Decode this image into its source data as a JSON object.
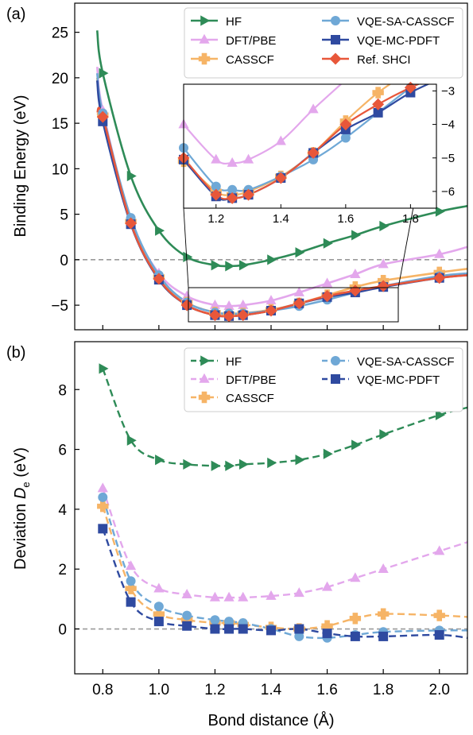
{
  "colors": {
    "HF": "#2e8b57",
    "DFT/PBE": "#e3a7ec",
    "CASSCF": "#f6b466",
    "VQE-SA-CASSCF": "#6fa8d6",
    "VQE-MC-PDFT": "#2f4aa0",
    "Ref. SHCI": "#e8573a",
    "zero_line": "#9a9a9a"
  },
  "x_axis": {
    "label": "Bond distance (Å)",
    "ticks": [
      "0.8",
      "1.0",
      "1.2",
      "1.4",
      "1.6",
      "1.8",
      "2.0"
    ],
    "range": [
      0.7,
      2.1
    ]
  },
  "chart_data": [
    {
      "panel_label": "(a)",
      "type": "line",
      "ylabel": "Binding Energy (eV)",
      "xlim": [
        0.7,
        2.1
      ],
      "ylim": [
        -7.7,
        28.2
      ],
      "yticks": [
        "−5",
        "0",
        "5",
        "10",
        "15",
        "20",
        "25"
      ],
      "yticks_values": [
        -5,
        0,
        5,
        10,
        15,
        20,
        25
      ],
      "legend_position": "top-right",
      "series": [
        {
          "name": "HF",
          "marker": "triangle-right",
          "x": [
            0.8,
            0.9,
            1.0,
            1.1,
            1.2,
            1.25,
            1.3,
            1.4,
            1.5,
            1.6,
            1.7,
            1.8,
            2.0
          ],
          "y": [
            20.5,
            9.2,
            3.2,
            0.3,
            -0.6,
            -0.7,
            -0.6,
            0.0,
            0.8,
            1.8,
            2.7,
            3.7,
            5.3
          ]
        },
        {
          "name": "DFT/PBE",
          "marker": "triangle-up",
          "x": [
            0.8,
            0.9,
            1.0,
            1.1,
            1.2,
            1.25,
            1.3,
            1.4,
            1.5,
            1.6,
            1.7,
            1.8,
            2.0
          ],
          "y": [
            16.4,
            4.4,
            -1.5,
            -4.0,
            -5.0,
            -5.1,
            -5.0,
            -4.5,
            -3.6,
            -2.6,
            -1.6,
            -0.5,
            0.6
          ]
        },
        {
          "name": "CASSCF",
          "marker": "plus",
          "x": [
            0.8,
            0.9,
            1.0,
            1.1,
            1.2,
            1.25,
            1.3,
            1.4,
            1.5,
            1.6,
            1.7,
            1.8,
            2.0
          ],
          "y": [
            15.9,
            4.2,
            -1.9,
            -4.7,
            -5.8,
            -6.0,
            -5.9,
            -5.5,
            -4.8,
            -3.9,
            -3.0,
            -2.3,
            -1.4
          ]
        },
        {
          "name": "VQE-SA-CASSCF",
          "marker": "circle",
          "x": [
            0.8,
            0.9,
            1.0,
            1.1,
            1.2,
            1.25,
            1.3,
            1.4,
            1.5,
            1.6,
            1.7,
            1.8,
            2.0
          ],
          "y": [
            16.1,
            4.6,
            -1.7,
            -4.7,
            -5.8,
            -5.9,
            -5.9,
            -5.6,
            -5.1,
            -4.4,
            -3.6,
            -2.9,
            -1.8
          ]
        },
        {
          "name": "VQE-MC-PDFT",
          "marker": "square",
          "x": [
            0.8,
            0.9,
            1.0,
            1.1,
            1.2,
            1.25,
            1.3,
            1.4,
            1.5,
            1.6,
            1.7,
            1.8,
            2.0
          ],
          "y": [
            15.2,
            3.9,
            -2.2,
            -5.0,
            -6.1,
            -6.2,
            -6.1,
            -5.6,
            -4.8,
            -4.1,
            -3.6,
            -3.0,
            -2.0
          ]
        },
        {
          "name": "Ref. SHCI",
          "marker": "diamond",
          "x": [
            0.8,
            0.9,
            1.0,
            1.1,
            1.2,
            1.25,
            1.3,
            1.4,
            1.5,
            1.6,
            1.7,
            1.8,
            2.0
          ],
          "y": [
            15.7,
            4.0,
            -2.1,
            -5.0,
            -6.1,
            -6.2,
            -6.1,
            -5.6,
            -4.8,
            -4.0,
            -3.4,
            -2.9,
            -2.0
          ]
        }
      ],
      "inset": {
        "xlim": [
          1.1,
          1.88
        ],
        "ylim": [
          -6.5,
          -2.8
        ],
        "xticks": [
          "1.2",
          "1.4",
          "1.6",
          "1.8"
        ],
        "xticks_values": [
          1.2,
          1.4,
          1.6,
          1.8
        ],
        "yticks": [
          "−6",
          "−5",
          "−4",
          "−3"
        ],
        "yticks_values": [
          -6,
          -5,
          -4,
          -3
        ],
        "series": [
          {
            "name": "DFT/PBE",
            "x": [
              1.1,
              1.2,
              1.25,
              1.3,
              1.4,
              1.5
            ],
            "y": [
              -4.0,
              -5.05,
              -5.15,
              -5.05,
              -4.5,
              -3.55
            ]
          },
          {
            "name": "CASSCF",
            "x": [
              1.1,
              1.2,
              1.25,
              1.3,
              1.4,
              1.5,
              1.6,
              1.7
            ],
            "y": [
              -5.1,
              -6.0,
              -6.1,
              -6.0,
              -5.55,
              -4.85,
              -3.9,
              -3.05
            ]
          },
          {
            "name": "VQE-SA-CASSCF",
            "x": [
              1.1,
              1.2,
              1.25,
              1.3,
              1.4,
              1.5,
              1.6,
              1.8
            ],
            "y": [
              -4.7,
              -5.85,
              -5.95,
              -5.95,
              -5.55,
              -5.05,
              -4.4,
              -2.9
            ]
          },
          {
            "name": "VQE-MC-PDFT",
            "x": [
              1.1,
              1.2,
              1.25,
              1.3,
              1.4,
              1.5,
              1.6,
              1.7,
              1.8
            ],
            "y": [
              -5.05,
              -6.15,
              -6.2,
              -6.1,
              -5.6,
              -4.85,
              -4.15,
              -3.65,
              -3.05
            ]
          },
          {
            "name": "Ref. SHCI",
            "x": [
              1.1,
              1.2,
              1.25,
              1.3,
              1.4,
              1.5,
              1.6,
              1.7,
              1.8
            ],
            "y": [
              -5.0,
              -6.1,
              -6.2,
              -6.1,
              -5.6,
              -4.85,
              -4.0,
              -3.4,
              -2.9
            ]
          }
        ]
      }
    },
    {
      "panel_label": "(b)",
      "type": "line",
      "ylabel": "Deviation D_e (eV)",
      "ylabel_main": "Deviation ",
      "ylabel_italic": "D",
      "ylabel_sub": "e",
      "ylabel_unit": " (eV)",
      "xlim": [
        0.7,
        2.1
      ],
      "ylim": [
        -1.5,
        9.6
      ],
      "yticks": [
        "0",
        "2",
        "4",
        "6",
        "8"
      ],
      "yticks_values": [
        0,
        2,
        4,
        6,
        8
      ],
      "legend_position": "top-right",
      "series": [
        {
          "name": "HF",
          "marker": "triangle-right",
          "x": [
            0.8,
            0.9,
            1.0,
            1.1,
            1.2,
            1.25,
            1.3,
            1.4,
            1.5,
            1.6,
            1.7,
            1.8,
            2.0,
            2.1
          ],
          "y": [
            8.7,
            6.3,
            5.65,
            5.5,
            5.45,
            5.45,
            5.5,
            5.55,
            5.65,
            5.85,
            6.15,
            6.5,
            7.15,
            7.4
          ]
        },
        {
          "name": "DFT/PBE",
          "marker": "triangle-up",
          "x": [
            0.8,
            0.9,
            1.0,
            1.1,
            1.2,
            1.25,
            1.3,
            1.4,
            1.5,
            1.6,
            1.7,
            1.8,
            2.0,
            2.1
          ],
          "y": [
            4.7,
            2.1,
            1.35,
            1.15,
            1.05,
            1.05,
            1.05,
            1.1,
            1.2,
            1.4,
            1.7,
            2.0,
            2.6,
            2.9
          ]
        },
        {
          "name": "CASSCF",
          "marker": "plus",
          "x": [
            0.8,
            0.9,
            1.0,
            1.1,
            1.2,
            1.25,
            1.3,
            1.4,
            1.5,
            1.6,
            1.7,
            1.8,
            2.0,
            2.1
          ],
          "y": [
            4.1,
            1.35,
            0.5,
            0.3,
            0.2,
            0.2,
            0.15,
            0.05,
            0.0,
            0.1,
            0.35,
            0.5,
            0.45,
            0.4
          ]
        },
        {
          "name": "VQE-SA-CASSCF",
          "marker": "circle",
          "x": [
            0.8,
            0.9,
            1.0,
            1.1,
            1.2,
            1.25,
            1.3,
            1.4,
            1.5,
            1.6,
            1.7,
            1.8,
            2.0,
            2.1
          ],
          "y": [
            4.4,
            1.6,
            0.75,
            0.45,
            0.3,
            0.25,
            0.2,
            0.0,
            -0.25,
            -0.3,
            -0.2,
            -0.1,
            -0.05,
            -0.05
          ]
        },
        {
          "name": "VQE-MC-PDFT",
          "marker": "square",
          "x": [
            0.8,
            0.9,
            1.0,
            1.1,
            1.2,
            1.25,
            1.3,
            1.4,
            1.5,
            1.6,
            1.7,
            1.8,
            2.0,
            2.1
          ],
          "y": [
            3.35,
            0.9,
            0.25,
            0.1,
            0.0,
            0.0,
            0.0,
            -0.05,
            0.0,
            -0.15,
            -0.25,
            -0.25,
            -0.2,
            -0.3
          ]
        }
      ]
    }
  ]
}
